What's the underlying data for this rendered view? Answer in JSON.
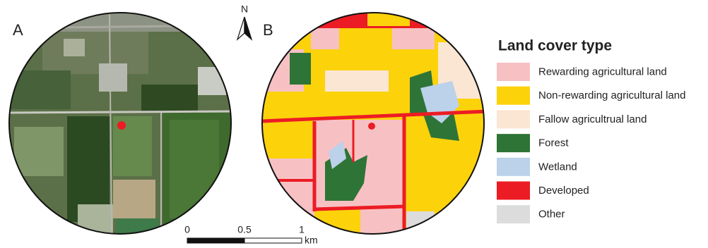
{
  "labels": {
    "A": "A",
    "B": "B"
  },
  "north": "N",
  "legend": {
    "title": "Land cover type",
    "items": [
      {
        "label": "Rewarding agricultural land",
        "color": "#f7c1c4"
      },
      {
        "label": "Non-rewarding agricultural land",
        "color": "#fcd20b"
      },
      {
        "label": "Fallow agricultrual land",
        "color": "#fbe6d3"
      },
      {
        "label": "Forest",
        "color": "#2e7437"
      },
      {
        "label": "Wetland",
        "color": "#bcd1ea"
      },
      {
        "label": "Developed",
        "color": "#ec1c24"
      },
      {
        "label": "Other",
        "color": "#dcdcdc"
      }
    ]
  },
  "scale": {
    "ticks": [
      0,
      0.5,
      1
    ],
    "unit": "km"
  }
}
